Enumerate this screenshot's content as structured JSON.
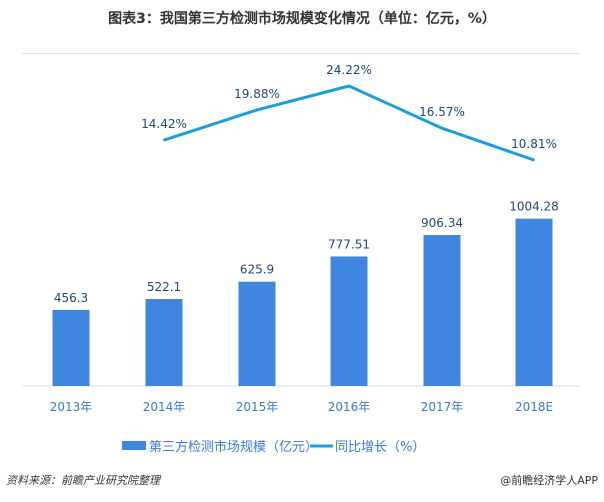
{
  "chart_data": {
    "type": "bar+line",
    "title": "图表3：我国第三方检测市场规模变化情况（单位：亿元，%）",
    "categories": [
      "2013年",
      "2014年",
      "2015年",
      "2016年",
      "2017年",
      "2018E"
    ],
    "series": [
      {
        "name": "第三方检测市场规模（亿元）",
        "type": "bar",
        "color": "#3f86e0",
        "values": [
          456.3,
          522.1,
          625.9,
          777.51,
          906.34,
          1004.28
        ],
        "labels": [
          "456.3",
          "522.1",
          "625.9",
          "777.51",
          "906.34",
          "1004.28"
        ]
      },
      {
        "name": "同比增长（%）",
        "type": "line",
        "color": "#1aa0dc",
        "values": [
          null,
          14.42,
          19.88,
          24.22,
          16.57,
          10.81
        ],
        "labels": [
          "",
          "14.42%",
          "19.88%",
          "24.22%",
          "16.57%",
          "10.81%"
        ]
      }
    ],
    "grid": false,
    "legend": "bottom"
  },
  "source": "资料来源：前瞻产业研究院整理",
  "credit": "@前瞻经济学人APP"
}
